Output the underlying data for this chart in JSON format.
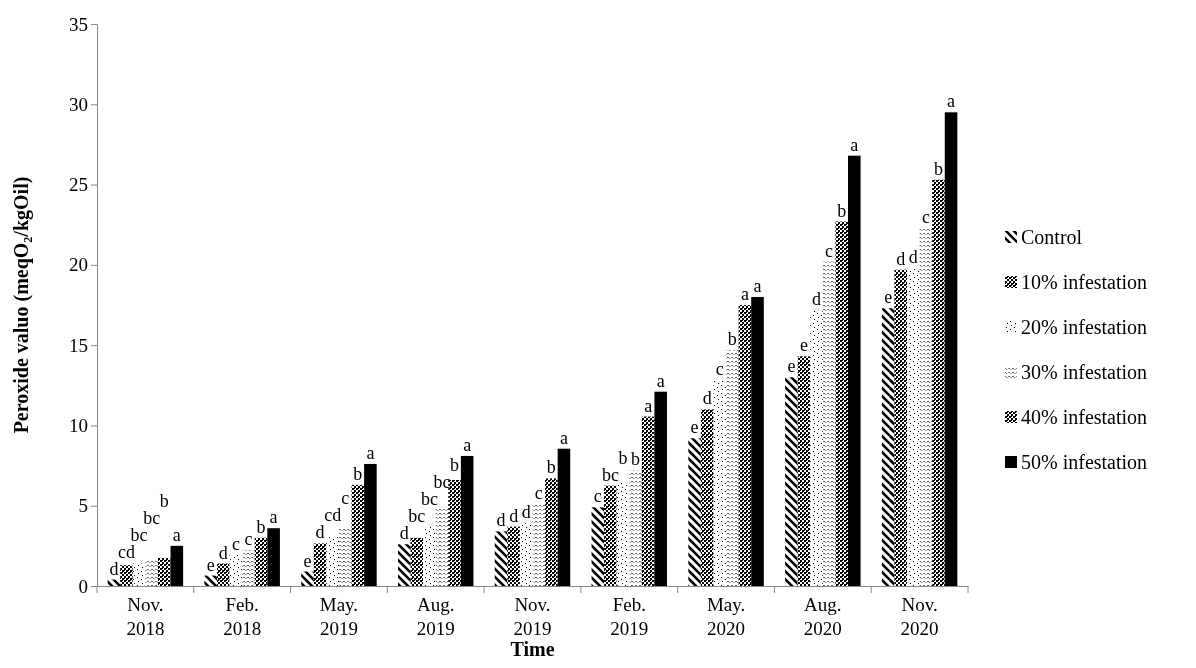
{
  "chart_data": {
    "type": "bar",
    "xlabel": "Time",
    "ylabel": "Peroxide valuo (meqO₂/kgOil)",
    "categories": [
      "Nov. 2018",
      "Feb. 2018",
      "May. 2019",
      "Aug. 2019",
      "Nov. 2019",
      "Feb. 2019",
      "May. 2020",
      "Aug. 2020",
      "Nov. 2020"
    ],
    "series": [
      {
        "name": "Control",
        "color": "#000000",
        "values": [
          0.4,
          0.65,
          0.9,
          2.6,
          3.4,
          4.9,
          9.2,
          13.0,
          17.3
        ],
        "value_labels": [
          "d",
          "e",
          "e",
          "d",
          "d",
          "c",
          "e",
          "e",
          "e"
        ]
      },
      {
        "name": "10% infestation",
        "color": "#000000",
        "values": [
          1.3,
          1.4,
          2.65,
          3.0,
          3.7,
          6.25,
          11.0,
          14.3,
          19.7
        ],
        "value_labels": [
          "cd",
          "d",
          "d",
          "bc",
          "d",
          "bc",
          "d",
          "e",
          "d"
        ]
      },
      {
        "name": "20% infestation",
        "color": "#000000",
        "values": [
          1.4,
          1.95,
          3.1,
          3.7,
          3.9,
          6.4,
          12.8,
          17.2,
          19.8
        ],
        "value_labels": [
          "bc",
          "c",
          "cd",
          "bc",
          "d",
          "b",
          "c",
          "d",
          "d"
        ]
      },
      {
        "name": "30% infestation",
        "color": "#000000",
        "values": [
          1.6,
          2.25,
          3.55,
          4.8,
          5.1,
          7.2,
          14.7,
          20.2,
          22.3
        ],
        "value_labels": [
          "bc",
          "c",
          "c",
          "bc",
          "c",
          "b",
          "b",
          "c",
          "c"
        ]
      },
      {
        "name": "40% infestation",
        "color": "#000000",
        "values": [
          1.75,
          3.0,
          6.3,
          6.6,
          6.7,
          10.55,
          17.5,
          22.7,
          25.3
        ],
        "value_labels": [
          "b",
          "b",
          "b",
          "b",
          "b",
          "a",
          "a",
          "b",
          "b"
        ]
      },
      {
        "name": "50% infestation",
        "color": "#000000",
        "values": [
          2.5,
          3.6,
          7.6,
          8.1,
          8.55,
          12.1,
          18.0,
          26.8,
          29.5
        ],
        "value_labels": [
          "a",
          "a",
          "a",
          "a",
          "a",
          "a",
          "a",
          "a",
          "a"
        ]
      }
    ],
    "ylim": [
      0,
      35
    ],
    "yticks": [
      0,
      5,
      10,
      15,
      20,
      25,
      30,
      35
    ],
    "grid": false,
    "legend": "right"
  }
}
